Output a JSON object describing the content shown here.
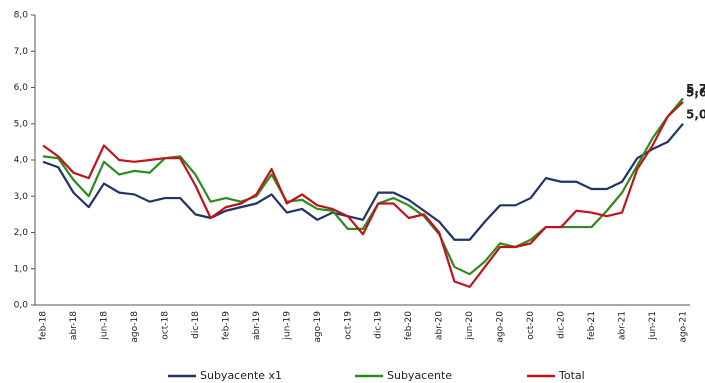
{
  "chart_data": {
    "type": "line",
    "categories": [
      "feb-18",
      null,
      "abr-18",
      null,
      "jun-18",
      null,
      "ago-18",
      null,
      "oct-18",
      null,
      "dic-18",
      null,
      "feb-19",
      null,
      "abr-19",
      null,
      "jun-19",
      null,
      "ago-19",
      null,
      "oct-19",
      null,
      "dic-19",
      null,
      "feb-20",
      null,
      "abr-20",
      null,
      "jun-20",
      null,
      "ago-20",
      null,
      "oct-20",
      null,
      "dic-20",
      null,
      "feb-21",
      null,
      "abr-21",
      null,
      "jun-21",
      null,
      "ago-21"
    ],
    "series": [
      {
        "name": "Subyacente x1",
        "color": "#1f3566",
        "values": [
          3.95,
          3.8,
          3.1,
          2.7,
          3.35,
          3.1,
          3.05,
          2.85,
          2.95,
          2.95,
          2.5,
          2.4,
          2.6,
          2.7,
          2.8,
          3.05,
          2.55,
          2.65,
          2.35,
          2.55,
          2.45,
          2.35,
          3.1,
          3.1,
          2.9,
          2.6,
          2.3,
          1.8,
          1.8,
          2.3,
          2.75,
          2.75,
          2.95,
          3.5,
          3.4,
          3.4,
          3.2,
          3.2,
          3.4,
          4.05,
          4.3,
          4.5,
          5.0
        ],
        "value_labels": [
          null,
          null,
          null,
          null,
          null,
          null,
          null,
          null,
          null,
          null,
          null,
          null,
          null,
          null,
          null,
          null,
          null,
          null,
          null,
          null,
          null,
          null,
          null,
          null,
          null,
          null,
          null,
          null,
          null,
          null,
          null,
          null,
          null,
          null,
          null,
          null,
          null,
          null,
          null,
          null,
          null,
          null,
          "5,0"
        ]
      },
      {
        "name": "Subyacente",
        "color": "#2e8b1e",
        "values": [
          4.1,
          4.05,
          3.45,
          3.0,
          3.95,
          3.6,
          3.7,
          3.65,
          4.05,
          4.1,
          3.6,
          2.85,
          2.95,
          2.85,
          3.0,
          3.6,
          2.85,
          2.9,
          2.65,
          2.6,
          2.1,
          2.1,
          2.8,
          2.95,
          2.75,
          2.45,
          1.95,
          1.05,
          0.85,
          1.2,
          1.7,
          1.6,
          1.8,
          2.15,
          2.15,
          2.15,
          2.15,
          2.6,
          3.1,
          3.85,
          4.6,
          5.2,
          5.7
        ],
        "value_labels": [
          null,
          null,
          null,
          null,
          null,
          null,
          null,
          null,
          null,
          null,
          null,
          null,
          null,
          null,
          null,
          null,
          null,
          null,
          null,
          null,
          null,
          null,
          null,
          null,
          null,
          null,
          null,
          null,
          null,
          null,
          null,
          null,
          null,
          null,
          null,
          null,
          null,
          null,
          null,
          null,
          null,
          null,
          "5,7"
        ]
      },
      {
        "name": "Total",
        "color": "#c0141c",
        "values": [
          4.4,
          4.1,
          3.65,
          3.5,
          4.4,
          4.0,
          3.95,
          4.0,
          4.05,
          4.05,
          3.3,
          2.4,
          2.7,
          2.8,
          3.05,
          3.75,
          2.8,
          3.05,
          2.75,
          2.65,
          2.45,
          1.95,
          2.8,
          2.8,
          2.4,
          2.5,
          2.0,
          0.65,
          0.5,
          1.05,
          1.6,
          1.6,
          1.7,
          2.15,
          2.15,
          2.6,
          2.55,
          2.45,
          2.55,
          3.75,
          4.4,
          5.2,
          5.6
        ],
        "value_labels": [
          null,
          null,
          null,
          null,
          null,
          null,
          null,
          null,
          null,
          null,
          null,
          null,
          null,
          null,
          null,
          null,
          null,
          null,
          null,
          null,
          null,
          null,
          null,
          null,
          null,
          null,
          null,
          null,
          null,
          null,
          null,
          null,
          null,
          null,
          null,
          null,
          null,
          null,
          null,
          null,
          null,
          null,
          "5,6"
        ]
      }
    ],
    "ylim": [
      0,
      8
    ],
    "yticks": [
      {
        "value": 0,
        "label": "0,0"
      },
      {
        "value": 1,
        "label": "1,0"
      },
      {
        "value": 2,
        "label": "2,0"
      },
      {
        "value": 3,
        "label": "3,0"
      },
      {
        "value": 4,
        "label": "4,0"
      },
      {
        "value": 5,
        "label": "5,0"
      },
      {
        "value": 6,
        "label": "6,0"
      },
      {
        "value": 7,
        "label": "7,0"
      },
      {
        "value": 8,
        "label": "8,0"
      }
    ],
    "grid": false,
    "legend": "bottom"
  }
}
